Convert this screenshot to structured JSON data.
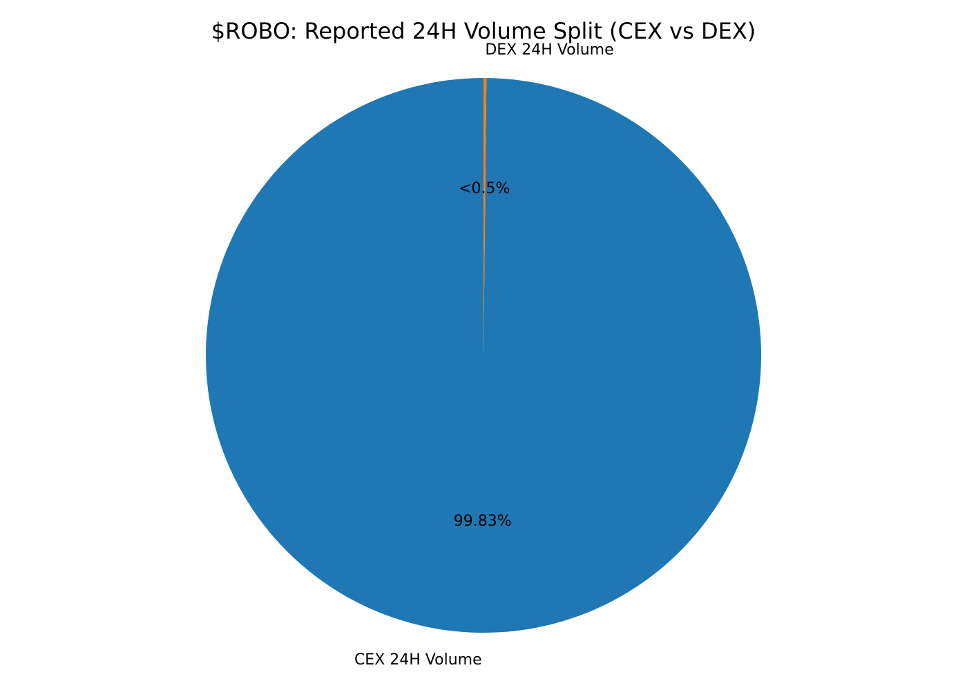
{
  "chart_data": {
    "type": "pie",
    "title": "$ROBO: Reported 24H Volume Split (CEX vs DEX)",
    "categories": [
      "CEX 24H Volume",
      "DEX 24H Volume"
    ],
    "values": [
      99.83,
      0.17
    ],
    "value_labels": [
      "99.83%",
      "<0.5%"
    ],
    "colors": [
      "#1f77b4",
      "#ff7f0e"
    ],
    "start_angle": "top, counterclockwise",
    "legend": "none"
  }
}
